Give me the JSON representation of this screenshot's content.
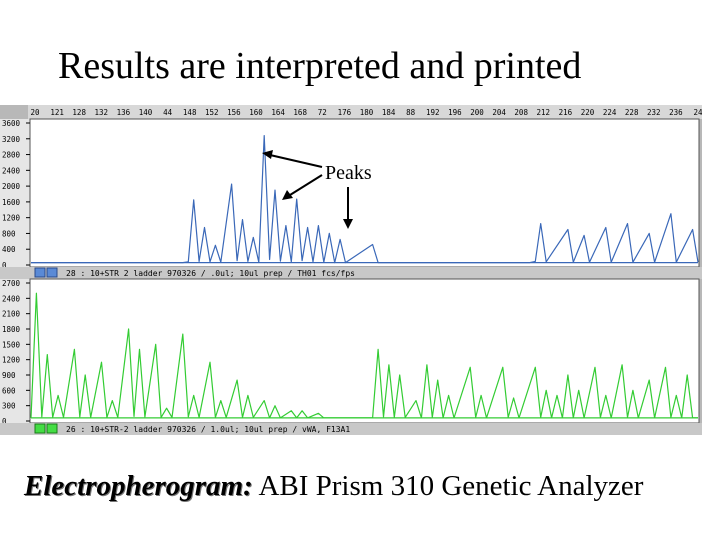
{
  "slide": {
    "title": "Results are interpreted and printed",
    "caption_emphasis": "Electropherogram:",
    "caption_rest": "ABI Prism 310 Genetic Analyzer"
  },
  "chart_data": [
    {
      "type": "line",
      "panel": "top",
      "color": "#3a68b8",
      "xrange": [
        117,
        240
      ],
      "scale_labels": [
        "20",
        "121",
        "128",
        "132",
        "136",
        "140",
        "44",
        "148",
        "152",
        "156",
        "160",
        "164",
        "168",
        "72",
        "176",
        "180",
        "184",
        "88",
        "192",
        "196",
        "200",
        "204",
        "208",
        "212",
        "216",
        "220",
        "224",
        "228",
        "232",
        "236",
        "24"
      ],
      "ylim": [
        0,
        3600
      ],
      "yticks": [
        "3600",
        "3200",
        "2800",
        "2400",
        "2000",
        "1600",
        "1200",
        "800",
        "400",
        "0"
      ],
      "status": "28 : 10+STR 2 ladder 970326 / .0ul; 10ul prep / TH01 fcs/fps",
      "annotation": "Peaks",
      "series": [
        {
          "points": [
            [
              117,
              60
            ],
            [
              145,
              60
            ],
            [
              146,
              80
            ],
            [
              147,
              1650
            ],
            [
              148,
              90
            ],
            [
              149,
              950
            ],
            [
              150,
              80
            ],
            [
              151,
              500
            ],
            [
              152,
              70
            ],
            [
              154,
              2050
            ],
            [
              155,
              110
            ],
            [
              156,
              1150
            ],
            [
              157,
              90
            ],
            [
              158,
              700
            ],
            [
              159,
              70
            ],
            [
              160,
              3280
            ],
            [
              161,
              140
            ],
            [
              162,
              1900
            ],
            [
              163,
              100
            ],
            [
              164,
              1000
            ],
            [
              165,
              80
            ],
            [
              166,
              1670
            ],
            [
              167,
              110
            ],
            [
              168,
              950
            ],
            [
              169,
              80
            ],
            [
              170,
              1000
            ],
            [
              171,
              70
            ],
            [
              172,
              800
            ],
            [
              173,
              60
            ],
            [
              174,
              650
            ],
            [
              175,
              60
            ],
            [
              180,
              520
            ],
            [
              181,
              60
            ],
            [
              240,
              60
            ]
          ]
        },
        {
          "points": [
            [
              117,
              60
            ],
            [
              209,
              60
            ],
            [
              210,
              90
            ],
            [
              211,
              1050
            ],
            [
              212,
              80
            ],
            [
              216,
              900
            ],
            [
              217,
              70
            ],
            [
              219,
              750
            ],
            [
              220,
              70
            ],
            [
              223,
              950
            ],
            [
              224,
              70
            ],
            [
              227,
              1050
            ],
            [
              228,
              70
            ],
            [
              231,
              800
            ],
            [
              232,
              70
            ],
            [
              235,
              1300
            ],
            [
              236,
              70
            ],
            [
              239,
              900
            ],
            [
              240,
              70
            ]
          ]
        }
      ]
    },
    {
      "type": "line",
      "panel": "bottom",
      "color": "#33cc33",
      "xrange": [
        117,
        240
      ],
      "ylim": [
        0,
        2700
      ],
      "yticks": [
        "2700",
        "2400",
        "2100",
        "1800",
        "1500",
        "1200",
        "900",
        "600",
        "300",
        "0"
      ],
      "status": "26 : 10+STR-2 ladder 970326 / 1.0ul; 10ul prep / vWA, F13A1",
      "series": [
        {
          "points": [
            [
              117,
              60
            ],
            [
              118,
              2500
            ],
            [
              119,
              80
            ],
            [
              120,
              1300
            ],
            [
              121,
              70
            ],
            [
              122,
              500
            ],
            [
              123,
              70
            ],
            [
              125,
              1400
            ],
            [
              126,
              80
            ],
            [
              127,
              900
            ],
            [
              128,
              70
            ],
            [
              130,
              1150
            ],
            [
              131,
              70
            ],
            [
              132,
              400
            ],
            [
              133,
              70
            ],
            [
              135,
              1800
            ],
            [
              136,
              90
            ],
            [
              137,
              1400
            ],
            [
              138,
              80
            ],
            [
              140,
              1500
            ],
            [
              141,
              70
            ],
            [
              142,
              250
            ],
            [
              143,
              70
            ],
            [
              145,
              1700
            ],
            [
              146,
              80
            ],
            [
              147,
              500
            ],
            [
              148,
              70
            ],
            [
              150,
              1150
            ],
            [
              151,
              70
            ],
            [
              152,
              400
            ],
            [
              153,
              70
            ],
            [
              155,
              800
            ],
            [
              156,
              70
            ],
            [
              157,
              500
            ],
            [
              158,
              70
            ],
            [
              160,
              400
            ],
            [
              161,
              60
            ],
            [
              162,
              300
            ],
            [
              163,
              60
            ],
            [
              165,
              200
            ],
            [
              166,
              60
            ],
            [
              167,
              200
            ],
            [
              168,
              60
            ],
            [
              170,
              150
            ],
            [
              171,
              60
            ],
            [
              240,
              60
            ]
          ]
        },
        {
          "points": [
            [
              117,
              60
            ],
            [
              180,
              60
            ],
            [
              181,
              1400
            ],
            [
              182,
              80
            ],
            [
              183,
              1100
            ],
            [
              184,
              70
            ],
            [
              185,
              900
            ],
            [
              186,
              70
            ],
            [
              188,
              400
            ],
            [
              189,
              60
            ],
            [
              190,
              1100
            ],
            [
              191,
              70
            ],
            [
              192,
              800
            ],
            [
              193,
              60
            ],
            [
              194,
              500
            ],
            [
              195,
              60
            ],
            [
              198,
              1050
            ],
            [
              199,
              70
            ],
            [
              200,
              500
            ],
            [
              201,
              60
            ],
            [
              204,
              1050
            ],
            [
              205,
              70
            ],
            [
              206,
              450
            ],
            [
              207,
              60
            ],
            [
              210,
              1050
            ],
            [
              211,
              70
            ],
            [
              212,
              600
            ],
            [
              213,
              60
            ],
            [
              214,
              500
            ],
            [
              215,
              60
            ],
            [
              216,
              900
            ],
            [
              217,
              60
            ],
            [
              218,
              600
            ],
            [
              219,
              60
            ],
            [
              221,
              1050
            ],
            [
              222,
              70
            ],
            [
              223,
              500
            ],
            [
              224,
              60
            ],
            [
              226,
              1100
            ],
            [
              227,
              70
            ],
            [
              228,
              600
            ],
            [
              229,
              60
            ],
            [
              231,
              800
            ],
            [
              232,
              60
            ],
            [
              234,
              1050
            ],
            [
              235,
              70
            ],
            [
              236,
              500
            ],
            [
              237,
              60
            ],
            [
              238,
              900
            ],
            [
              239,
              60
            ],
            [
              240,
              60
            ]
          ]
        }
      ]
    }
  ]
}
